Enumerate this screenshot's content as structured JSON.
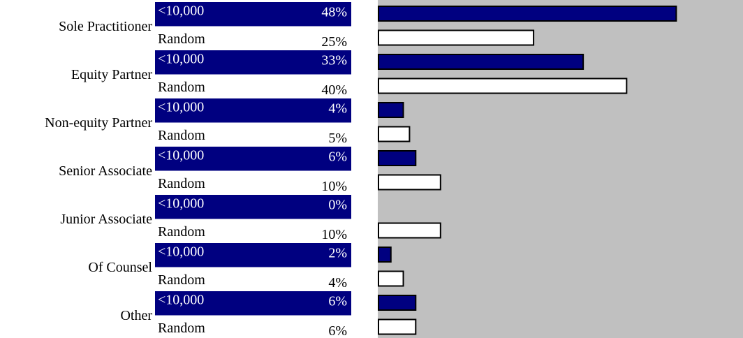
{
  "chart_data": {
    "type": "bar",
    "orientation": "horizontal",
    "categories": [
      "Sole Practitioner",
      "Equity Partner",
      "Non-equity Partner",
      "Senior Associate",
      "Junior Associate",
      "Of Counsel",
      "Other"
    ],
    "series": [
      {
        "name": "<10,000",
        "color": "#000080",
        "values": [
          48,
          33,
          4,
          6,
          0,
          2,
          6
        ],
        "value_labels": [
          "48%",
          "33%",
          "4%",
          "6%",
          "0%",
          "2%",
          "6%"
        ]
      },
      {
        "name": "Random",
        "color": "#ffffff",
        "values": [
          25,
          40,
          5,
          10,
          10,
          4,
          6
        ],
        "value_labels": [
          "25%",
          "40%",
          "5%",
          "10%",
          "10%",
          "4%",
          "6%"
        ]
      }
    ],
    "xlim": [
      0,
      58.65
    ],
    "plot_background": "#c0c0c0"
  }
}
